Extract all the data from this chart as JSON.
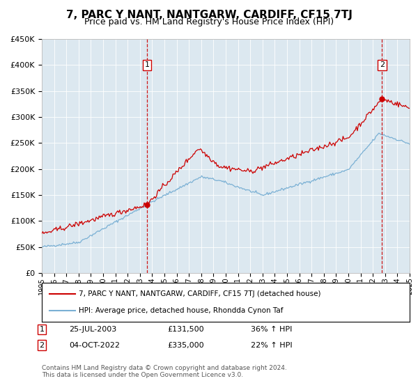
{
  "title": "7, PARC Y NANT, NANTGARW, CARDIFF, CF15 7TJ",
  "subtitle": "Price paid vs. HM Land Registry's House Price Index (HPI)",
  "legend_label_red": "7, PARC Y NANT, NANTGARW, CARDIFF, CF15 7TJ (detached house)",
  "legend_label_blue": "HPI: Average price, detached house, Rhondda Cynon Taf",
  "sale1_label": "1",
  "sale1_date": "25-JUL-2003",
  "sale1_price": "£131,500",
  "sale1_hpi": "36% ↑ HPI",
  "sale1_year": 2003.57,
  "sale1_value": 131500,
  "sale2_label": "2",
  "sale2_date": "04-OCT-2022",
  "sale2_price": "£335,000",
  "sale2_hpi": "22% ↑ HPI",
  "sale2_year": 2022.75,
  "sale2_value": 335000,
  "ylim": [
    0,
    450000
  ],
  "xlim": [
    1995,
    2025
  ],
  "yticks": [
    0,
    50000,
    100000,
    150000,
    200000,
    250000,
    300000,
    350000,
    400000,
    450000
  ],
  "bg_color": "#dce8f0",
  "red_color": "#cc0000",
  "blue_color": "#7ab0d4",
  "footer_text": "Contains HM Land Registry data © Crown copyright and database right 2024.\nThis data is licensed under the Open Government Licence v3.0.",
  "title_fontsize": 11,
  "subtitle_fontsize": 9
}
